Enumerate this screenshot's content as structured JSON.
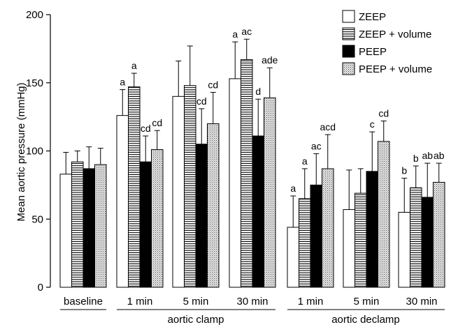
{
  "chart_data": {
    "type": "bar",
    "ylabel": "Mean aortic pressure (mmHg)",
    "ylim": [
      0,
      200
    ],
    "yticks": [
      0,
      50,
      100,
      150,
      200
    ],
    "grid": false,
    "legend_position": "top-right",
    "categories": [
      "baseline",
      "1 min",
      "5 min",
      "30 min",
      "1 min",
      "5 min",
      "30 min"
    ],
    "groups": [
      {
        "label": "aortic clamp",
        "categories": [
          1,
          2,
          3
        ]
      },
      {
        "label": "aortic declamp",
        "categories": [
          4,
          5,
          6
        ]
      }
    ],
    "series": [
      {
        "name": "ZEEP",
        "fill": "white",
        "values": [
          83,
          126,
          140,
          153,
          44,
          57,
          55
        ],
        "errors": [
          16,
          19,
          26,
          27,
          23,
          29,
          25
        ],
        "annotations": [
          "",
          "a",
          "",
          "a",
          "a",
          "",
          "b"
        ]
      },
      {
        "name": "ZEEP + volume",
        "fill": "horizontal-lines",
        "values": [
          92,
          147,
          148,
          167,
          65,
          69,
          73
        ],
        "errors": [
          8,
          10,
          29,
          15,
          22,
          18,
          16
        ],
        "annotations": [
          "",
          "a",
          "",
          "ac",
          "a",
          "",
          "b"
        ]
      },
      {
        "name": "PEEP",
        "fill": "black",
        "values": [
          87,
          92,
          105,
          111,
          75,
          85,
          66
        ],
        "errors": [
          16,
          19,
          26,
          27,
          23,
          29,
          25
        ],
        "annotations": [
          "",
          "cd",
          "cd",
          "d",
          "ac",
          "c",
          "ab"
        ]
      },
      {
        "name": "PEEP + volume",
        "fill": "dots",
        "values": [
          90,
          101,
          120,
          139,
          87,
          107,
          77
        ],
        "errors": [
          12,
          14,
          23,
          22,
          25,
          15,
          14
        ],
        "annotations": [
          "",
          "cd",
          "cd",
          "ade",
          "acd",
          "cd",
          "ab"
        ]
      }
    ]
  }
}
